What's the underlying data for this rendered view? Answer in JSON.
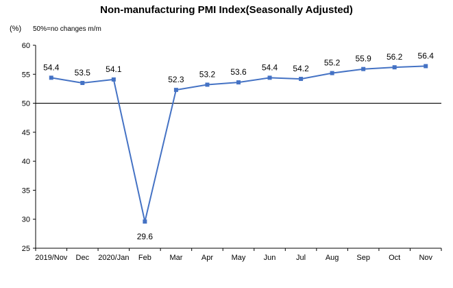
{
  "chart_data": {
    "type": "line",
    "title": "Non-manufacturing PMI Index(Seasonally Adjusted)",
    "ylabel": "(%)",
    "annotation": "50%=no changes  m/m",
    "ylim": [
      25,
      60
    ],
    "yticks": [
      25,
      30,
      35,
      40,
      45,
      50,
      55,
      60
    ],
    "reference_line": 50,
    "categories": [
      "2019/Nov",
      "Dec",
      "2020/Jan",
      "Feb",
      "Mar",
      "Apr",
      "May",
      "Jun",
      "Jul",
      "Aug",
      "Sep",
      "Oct",
      "Nov"
    ],
    "series": [
      {
        "values": [
          54.4,
          53.5,
          54.1,
          29.6,
          52.3,
          53.2,
          53.6,
          54.4,
          54.2,
          55.2,
          55.9,
          56.2,
          56.4
        ],
        "labels": [
          "54.4",
          "53.5",
          "54.1",
          "29.6",
          "52.3",
          "53.2",
          "53.6",
          "54.4",
          "54.2",
          "55.2",
          "55.9",
          "56.2",
          "56.4"
        ],
        "color": "#4472C4"
      }
    ],
    "grid": false,
    "legend": "none"
  }
}
